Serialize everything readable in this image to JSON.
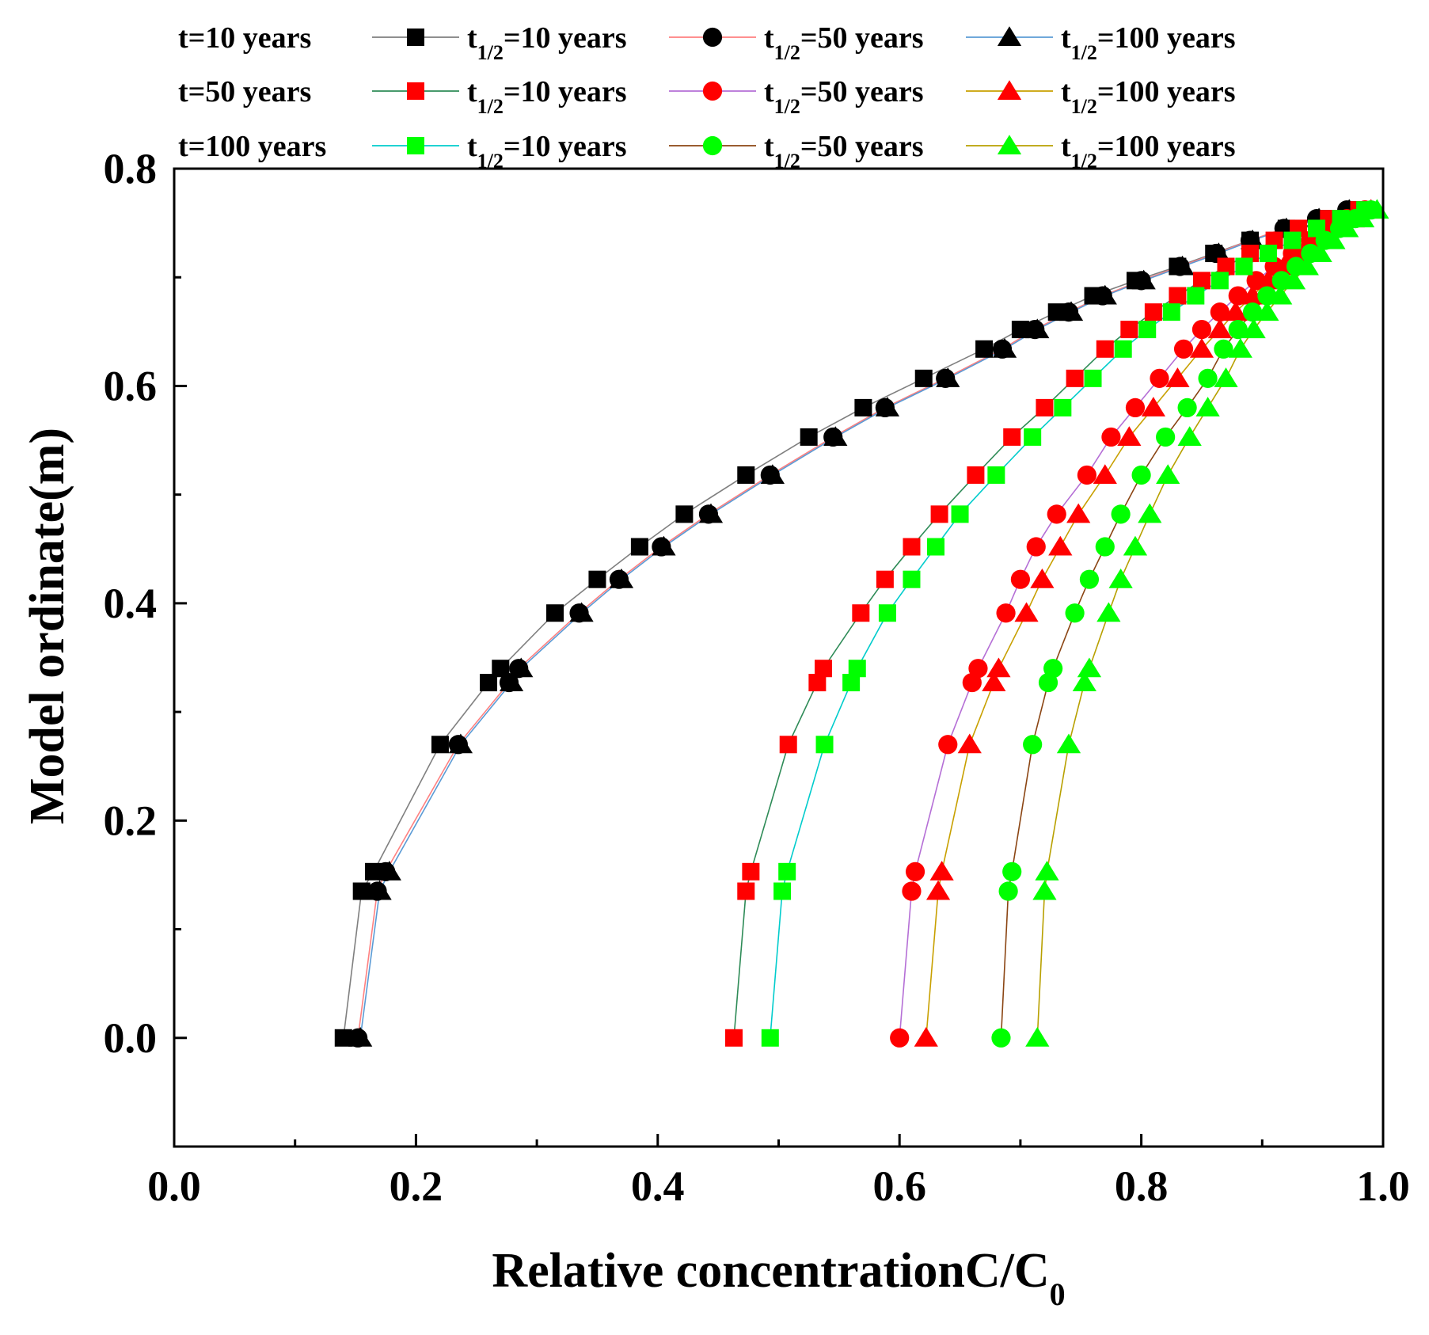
{
  "chart_data": {
    "type": "line",
    "title": "",
    "xlabel": "Relative concentrationC/C",
    "xlabel_sub": "0",
    "ylabel": "Model ordinate(m)",
    "xlim": [
      0.0,
      1.0
    ],
    "ylim": [
      -0.1,
      0.8
    ],
    "xticks": [
      "0.0",
      "0.2",
      "0.4",
      "0.6",
      "0.8",
      "1.0"
    ],
    "yticks": [
      "0.0",
      "0.2",
      "0.4",
      "0.6",
      "0.8"
    ],
    "grid": false,
    "legend_position": "top, outside plot area (3 rows x 3 columns)",
    "legend_rows": [
      {
        "label": "t=10 years"
      },
      {
        "label": "t=50 years"
      },
      {
        "label": "t=100 years"
      }
    ],
    "legend_entry_text": {
      "prefix": "t",
      "sub": "1/2",
      "suffixes": [
        "=10 years",
        "=50 years",
        "=100 years"
      ]
    },
    "y": [
      0.0,
      0.135,
      0.153,
      0.27,
      0.327,
      0.34,
      0.391,
      0.422,
      0.452,
      0.482,
      0.518,
      0.553,
      0.58,
      0.607,
      0.634,
      0.652,
      0.668,
      0.683,
      0.697,
      0.71,
      0.722,
      0.734,
      0.745,
      0.754,
      0.762
    ],
    "series": [
      {
        "t": "10 years",
        "half_life": "10 years",
        "marker": "square",
        "marker_color": "#000000",
        "line_color": "#7f7f7f",
        "x": [
          0.14,
          0.155,
          0.165,
          0.22,
          0.26,
          0.27,
          0.315,
          0.35,
          0.385,
          0.422,
          0.473,
          0.525,
          0.57,
          0.62,
          0.67,
          0.7,
          0.73,
          0.76,
          0.795,
          0.83,
          0.86,
          0.89,
          0.92,
          0.95,
          0.975
        ]
      },
      {
        "t": "10 years",
        "half_life": "50 years",
        "marker": "circle",
        "marker_color": "#000000",
        "line_color": "#ff8080",
        "x": [
          0.152,
          0.168,
          0.175,
          0.235,
          0.277,
          0.285,
          0.335,
          0.368,
          0.403,
          0.442,
          0.493,
          0.545,
          0.588,
          0.638,
          0.685,
          0.712,
          0.74,
          0.768,
          0.8,
          0.832,
          0.862,
          0.89,
          0.918,
          0.945,
          0.97
        ]
      },
      {
        "t": "10 years",
        "half_life": "100 years",
        "marker": "triangle",
        "marker_color": "#000000",
        "line_color": "#5b9bd5",
        "x": [
          0.154,
          0.17,
          0.178,
          0.237,
          0.279,
          0.287,
          0.337,
          0.37,
          0.405,
          0.444,
          0.495,
          0.547,
          0.59,
          0.64,
          0.687,
          0.714,
          0.742,
          0.77,
          0.802,
          0.834,
          0.864,
          0.892,
          0.92,
          0.947,
          0.972
        ]
      },
      {
        "t": "50 years",
        "half_life": "10 years",
        "marker": "square",
        "marker_color": "#ff0000",
        "line_color": "#2e8b57",
        "x": [
          0.463,
          0.473,
          0.477,
          0.508,
          0.532,
          0.537,
          0.568,
          0.588,
          0.61,
          0.633,
          0.663,
          0.693,
          0.72,
          0.745,
          0.77,
          0.79,
          0.81,
          0.83,
          0.85,
          0.87,
          0.89,
          0.91,
          0.93,
          0.955,
          0.98
        ]
      },
      {
        "t": "50 years",
        "half_life": "50 years",
        "marker": "circle",
        "marker_color": "#ff0000",
        "line_color": "#b56fd6",
        "x": [
          0.6,
          0.61,
          0.613,
          0.64,
          0.66,
          0.665,
          0.688,
          0.7,
          0.713,
          0.73,
          0.755,
          0.775,
          0.795,
          0.815,
          0.835,
          0.85,
          0.865,
          0.88,
          0.895,
          0.91,
          0.925,
          0.94,
          0.955,
          0.97,
          0.985
        ]
      },
      {
        "t": "50 years",
        "half_life": "100 years",
        "marker": "triangle",
        "marker_color": "#ff0000",
        "line_color": "#c8a000",
        "x": [
          0.622,
          0.632,
          0.635,
          0.658,
          0.678,
          0.682,
          0.705,
          0.718,
          0.733,
          0.748,
          0.77,
          0.79,
          0.81,
          0.83,
          0.85,
          0.865,
          0.878,
          0.892,
          0.905,
          0.918,
          0.932,
          0.946,
          0.96,
          0.975,
          0.99
        ]
      },
      {
        "t": "100 years",
        "half_life": "10 years",
        "marker": "square",
        "marker_color": "#00ff00",
        "line_color": "#00cccc",
        "x": [
          0.493,
          0.503,
          0.507,
          0.538,
          0.56,
          0.565,
          0.59,
          0.61,
          0.63,
          0.65,
          0.68,
          0.71,
          0.735,
          0.76,
          0.785,
          0.805,
          0.825,
          0.845,
          0.865,
          0.885,
          0.905,
          0.925,
          0.945,
          0.965,
          0.985
        ]
      },
      {
        "t": "100 years",
        "half_life": "50 years",
        "marker": "circle",
        "marker_color": "#00ff00",
        "line_color": "#8b4513",
        "x": [
          0.684,
          0.69,
          0.693,
          0.71,
          0.723,
          0.727,
          0.745,
          0.757,
          0.77,
          0.783,
          0.8,
          0.82,
          0.838,
          0.855,
          0.868,
          0.88,
          0.892,
          0.904,
          0.916,
          0.928,
          0.94,
          0.952,
          0.964,
          0.977,
          0.99
        ]
      },
      {
        "t": "100 years",
        "half_life": "100 years",
        "marker": "triangle",
        "marker_color": "#00ff00",
        "line_color": "#b8a000",
        "x": [
          0.714,
          0.72,
          0.722,
          0.74,
          0.753,
          0.757,
          0.773,
          0.783,
          0.795,
          0.807,
          0.822,
          0.84,
          0.855,
          0.87,
          0.882,
          0.893,
          0.904,
          0.915,
          0.926,
          0.937,
          0.948,
          0.959,
          0.97,
          0.983,
          0.995
        ]
      }
    ]
  }
}
